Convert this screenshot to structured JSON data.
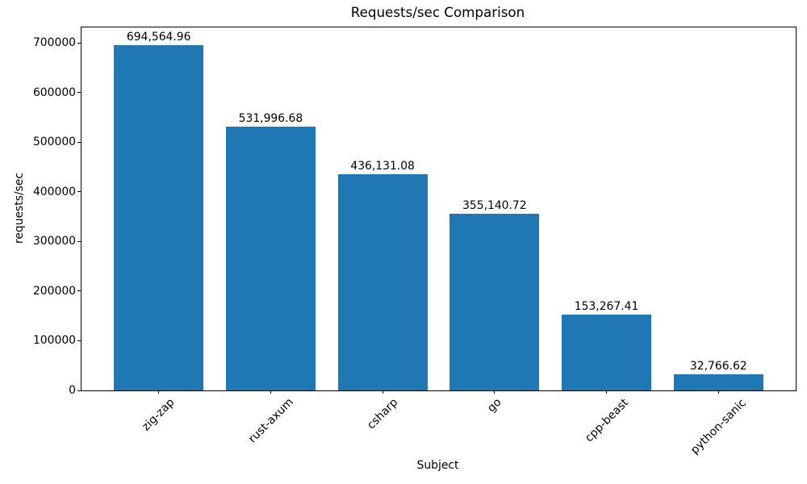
{
  "figure": {
    "background": "#ffffff"
  },
  "chart_data": {
    "type": "bar",
    "title": "Requests/sec Comparison",
    "xlabel": "Subject",
    "ylabel": "requests/sec",
    "categories": [
      "zig-zap",
      "rust-axum",
      "csharp",
      "go",
      "cpp-beast",
      "python-sanic"
    ],
    "values": [
      694564.96,
      531996.68,
      436131.08,
      355140.72,
      153267.41,
      32766.62
    ],
    "value_labels": [
      "694,564.96",
      "531,996.68",
      "436,131.08",
      "355,140.72",
      "153,267.41",
      "32,766.62"
    ],
    "yticks": [
      0,
      100000,
      200000,
      300000,
      400000,
      500000,
      600000,
      700000
    ],
    "ylim": [
      0,
      731000
    ],
    "xtick_rotation_deg": 45,
    "bar_color": "#1f77b4",
    "bar_width_fraction": 0.8,
    "grid": false,
    "legend": null,
    "spine_color": "#000000",
    "text_color": "#000000"
  }
}
